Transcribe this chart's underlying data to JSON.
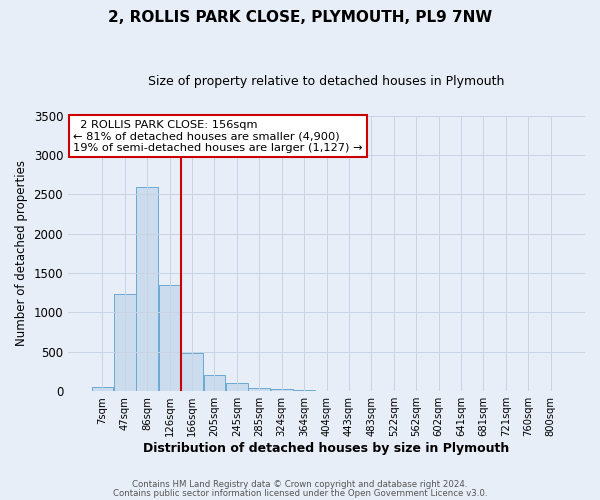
{
  "title": "2, ROLLIS PARK CLOSE, PLYMOUTH, PL9 7NW",
  "subtitle": "Size of property relative to detached houses in Plymouth",
  "xlabel": "Distribution of detached houses by size in Plymouth",
  "ylabel": "Number of detached properties",
  "footer_line1": "Contains HM Land Registry data © Crown copyright and database right 2024.",
  "footer_line2": "Contains public sector information licensed under the Open Government Licence v3.0.",
  "bar_labels": [
    "7sqm",
    "47sqm",
    "86sqm",
    "126sqm",
    "166sqm",
    "205sqm",
    "245sqm",
    "285sqm",
    "324sqm",
    "364sqm",
    "404sqm",
    "443sqm",
    "483sqm",
    "522sqm",
    "562sqm",
    "602sqm",
    "641sqm",
    "681sqm",
    "721sqm",
    "760sqm",
    "800sqm"
  ],
  "bar_values": [
    50,
    1230,
    2590,
    1350,
    490,
    200,
    110,
    40,
    22,
    10,
    5,
    2,
    1,
    0,
    0,
    0,
    0,
    0,
    0,
    0,
    0
  ],
  "bar_color": "#ccdcef",
  "bar_edge_color": "#6aaad4",
  "vline_x": 3.5,
  "vline_color": "#cc0000",
  "ylim": [
    0,
    3500
  ],
  "yticks": [
    0,
    500,
    1000,
    1500,
    2000,
    2500,
    3000,
    3500
  ],
  "annotation_title": "2 ROLLIS PARK CLOSE: 156sqm",
  "annotation_line1": "← 81% of detached houses are smaller (4,900)",
  "annotation_line2": "19% of semi-detached houses are larger (1,127) →",
  "annotation_box_color": "#ffffff",
  "annotation_box_edge_color": "#cc0000",
  "grid_color": "#c8d4e4",
  "background_color": "#e8eef8"
}
